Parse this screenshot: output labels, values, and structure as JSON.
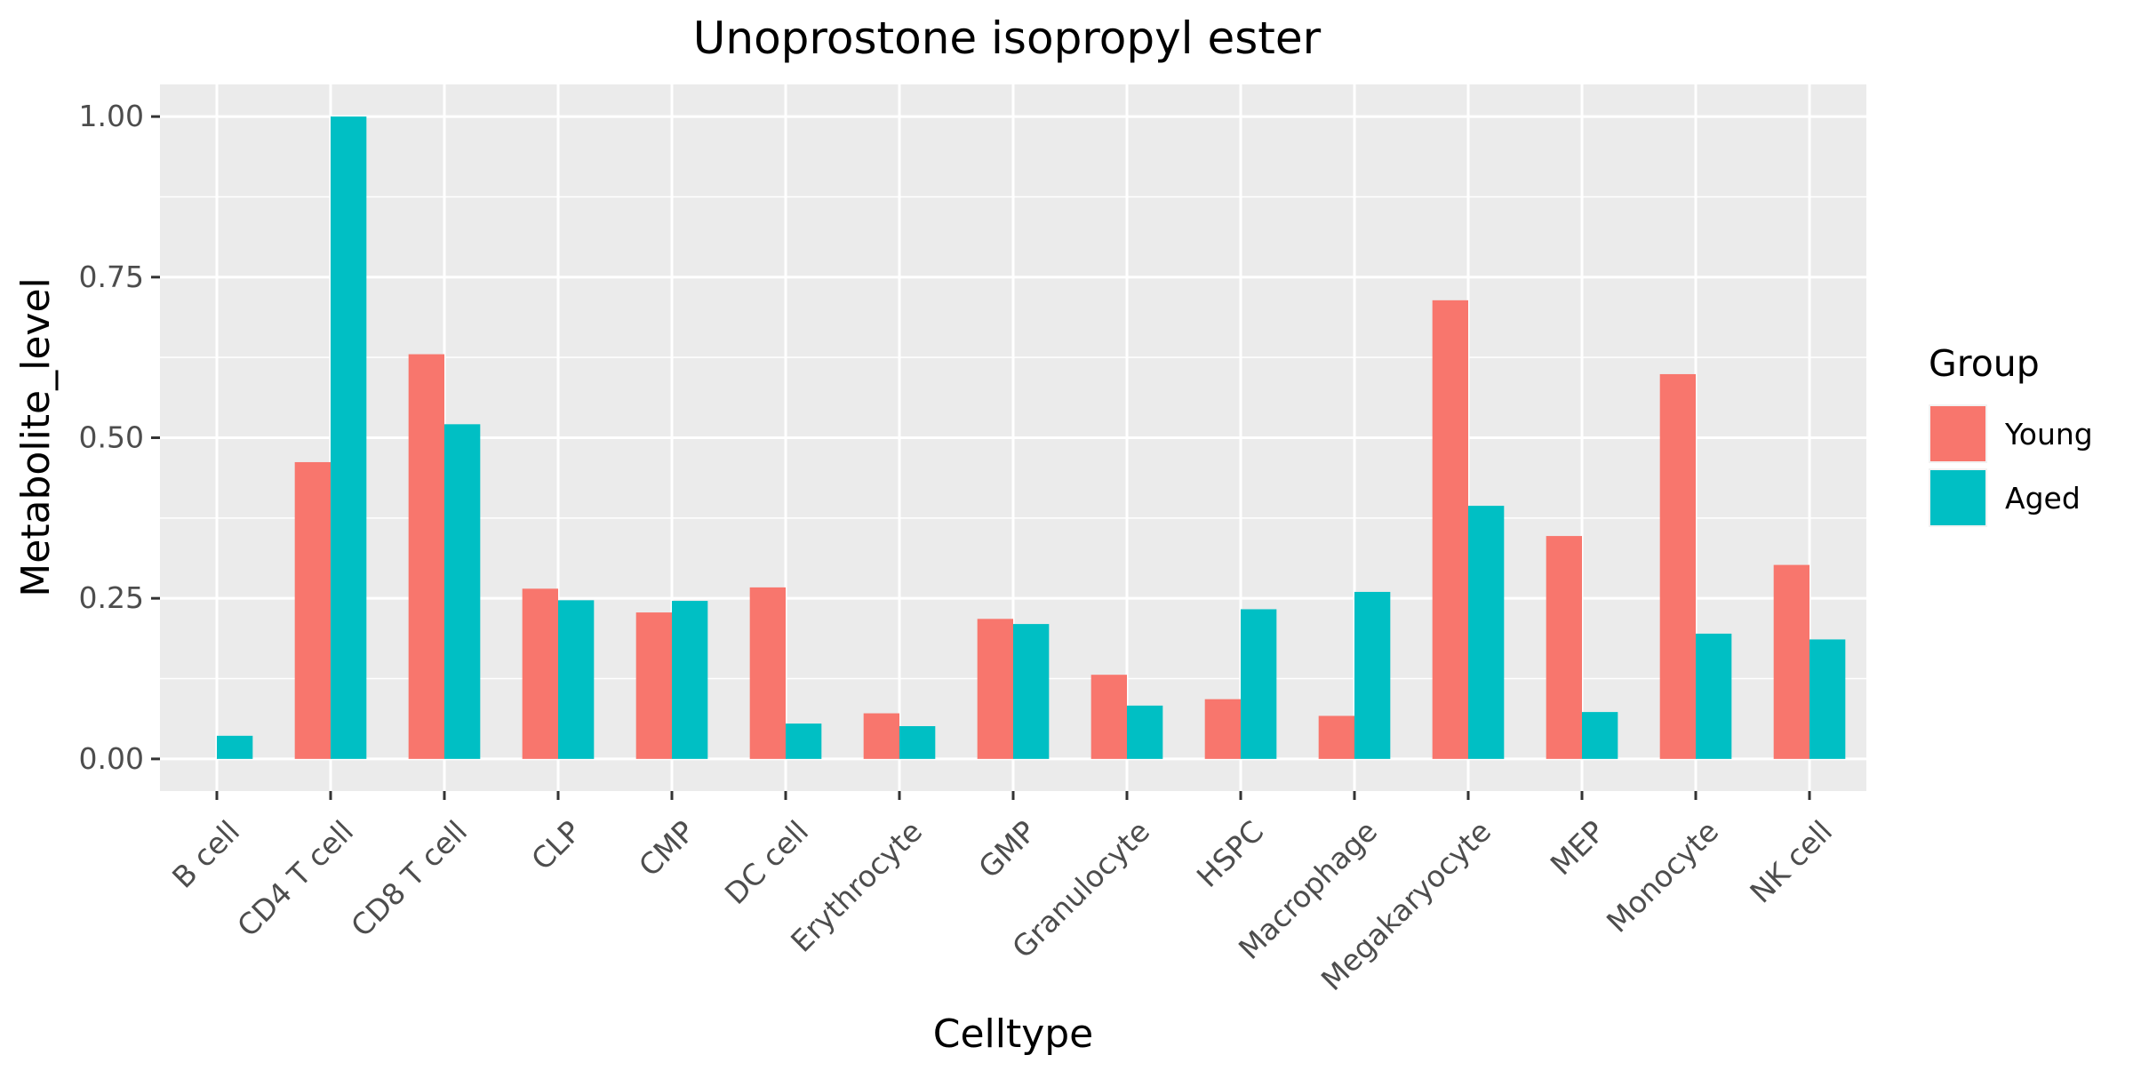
{
  "chart_data": {
    "type": "bar",
    "title": "Unoprostone isopropyl ester",
    "xlabel": "Celltype",
    "ylabel": "Metabolite_level",
    "ylim": [
      -0.05,
      1.05
    ],
    "yticks": [
      0.0,
      0.25,
      0.5,
      0.75,
      1.0
    ],
    "ytick_labels": [
      "0.00",
      "0.25",
      "0.50",
      "0.75",
      "1.00"
    ],
    "categories": [
      "B cell",
      "CD4 T cell",
      "CD8 T cell",
      "CLP",
      "CMP",
      "DC cell",
      "Erythrocyte",
      "GMP",
      "Granulocyte",
      "HSPC",
      "Macrophage",
      "Megakaryocyte",
      "MEP",
      "Monocyte",
      "NK cell"
    ],
    "series": [
      {
        "name": "Young",
        "color": "#F8766D",
        "values": [
          0.0,
          0.462,
          0.63,
          0.265,
          0.228,
          0.267,
          0.071,
          0.218,
          0.131,
          0.093,
          0.067,
          0.714,
          0.347,
          0.599,
          0.302
        ]
      },
      {
        "name": "Aged",
        "color": "#00BFC4",
        "values": [
          0.036,
          1.0,
          0.521,
          0.247,
          0.246,
          0.055,
          0.051,
          0.21,
          0.083,
          0.233,
          0.26,
          0.394,
          0.073,
          0.195,
          0.186
        ]
      }
    ],
    "legend": {
      "title": "Group",
      "position": "right"
    },
    "grid": true,
    "panel_background": "#EBEBEB",
    "grid_color": "#FFFFFF"
  }
}
